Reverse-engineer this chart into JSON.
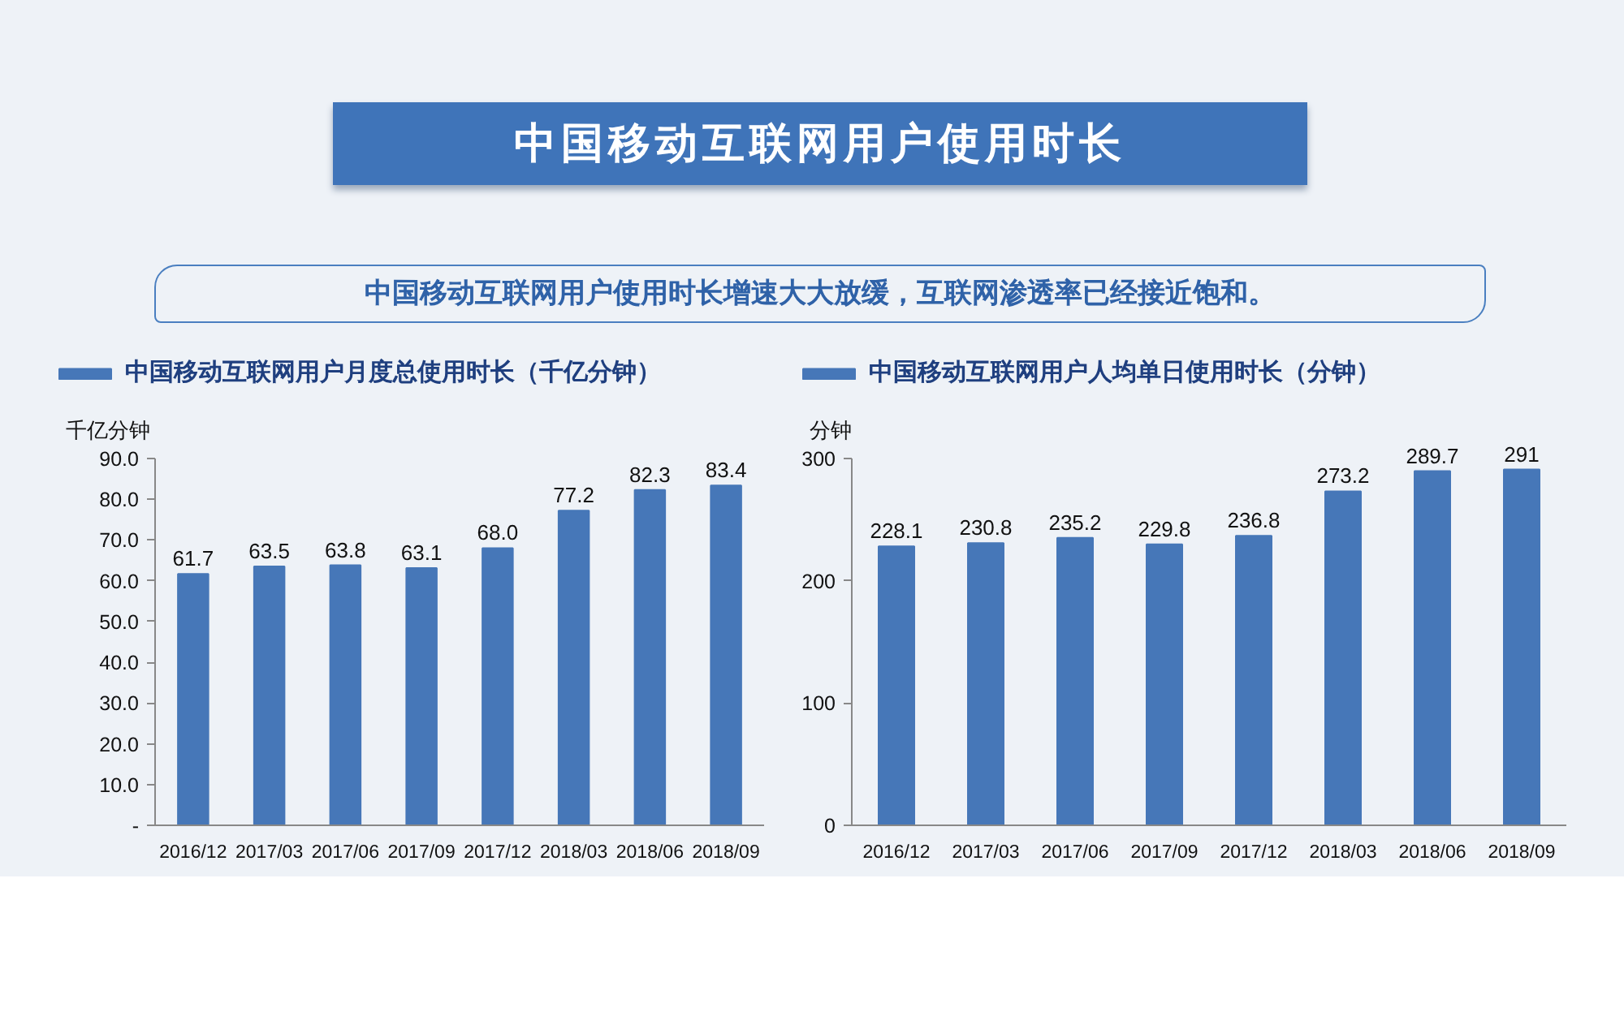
{
  "chart_data": [
    {
      "type": "bar",
      "title": "中国移动互联网用户使用时长",
      "subtitle": "中国移动互联网用户使用时长增速大大放缓，互联网渗透率已经接近饱和。",
      "ylabel": "千亿分钟",
      "categories": [
        "2016/12",
        "2017/03",
        "2017/06",
        "2017/09",
        "2017/12",
        "2018/03",
        "2018/06",
        "2018/09"
      ],
      "series": [
        {
          "name": "中国移动互联网用户月度总使用时长（千亿分钟）",
          "color": "#4677b8",
          "values": [
            61.7,
            63.5,
            63.8,
            63.1,
            68.0,
            77.2,
            82.3,
            83.4
          ],
          "value_labels": [
            "61.7",
            "63.5",
            "63.8",
            "63.1",
            "68.0",
            "77.2",
            "82.3",
            "83.4"
          ]
        }
      ],
      "ylim": [
        0,
        90
      ],
      "yticks": [
        {
          "value": 0,
          "label": "-"
        },
        {
          "value": 10,
          "label": "10.0"
        },
        {
          "value": 20,
          "label": "20.0"
        },
        {
          "value": 30,
          "label": "30.0"
        },
        {
          "value": 40,
          "label": "40.0"
        },
        {
          "value": 50,
          "label": "50.0"
        },
        {
          "value": 60,
          "label": "60.0"
        },
        {
          "value": 70,
          "label": "70.0"
        },
        {
          "value": 80,
          "label": "80.0"
        },
        {
          "value": 90,
          "label": "90.0"
        }
      ],
      "grid": false,
      "legend": "top left"
    },
    {
      "type": "bar",
      "ylabel": "分钟",
      "categories": [
        "2016/12",
        "2017/03",
        "2017/06",
        "2017/09",
        "2017/12",
        "2018/03",
        "2018/06",
        "2018/09"
      ],
      "series": [
        {
          "name": "中国移动互联网用户人均单日使用时长（分钟）",
          "color": "#4677b8",
          "values": [
            228.1,
            230.8,
            235.2,
            229.8,
            236.8,
            273.2,
            289.7,
            291
          ],
          "value_labels": [
            "228.1",
            "230.8",
            "235.2",
            "229.8",
            "236.8",
            "273.2",
            "289.7",
            "291"
          ]
        }
      ],
      "ylim": [
        0,
        300
      ],
      "yticks": [
        0,
        100,
        200,
        300
      ],
      "grid": false,
      "legend": "top left"
    }
  ]
}
